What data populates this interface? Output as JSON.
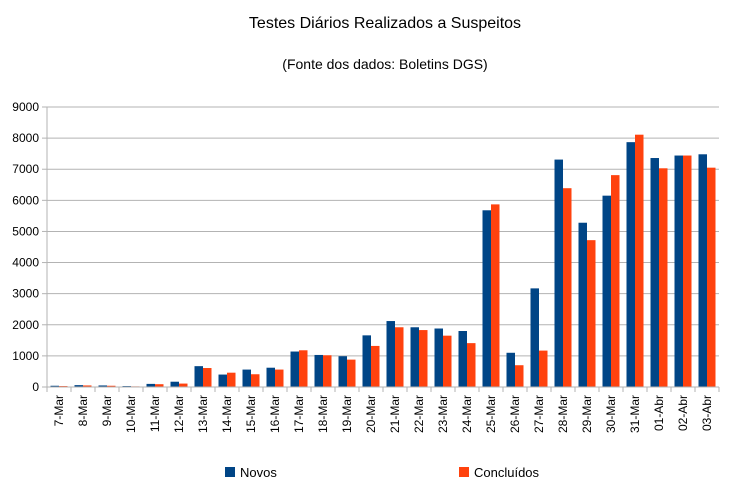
{
  "chart_data": {
    "type": "bar",
    "title": "Testes Diários Realizados a Suspeitos",
    "subtitle": "(Fonte dos dados: Boletins DGS)",
    "xlabel": "",
    "ylabel": "",
    "ylim": [
      0,
      9000
    ],
    "yticks": [
      0,
      1000,
      2000,
      3000,
      4000,
      5000,
      6000,
      7000,
      8000,
      9000
    ],
    "grid": true,
    "legend_position": "bottom",
    "categories": [
      "7-Mar",
      "8-Mar",
      "9-Mar",
      "10-Mar",
      "11-Mar",
      "12-Mar",
      "13-Mar",
      "14-Mar",
      "15-Mar",
      "16-Mar",
      "17-Mar",
      "18-Mar",
      "19-Mar",
      "20-Mar",
      "21-Mar",
      "22-Mar",
      "23-Mar",
      "24-Mar",
      "25-Mar",
      "26-Mar",
      "27-Mar",
      "28-Mar",
      "29-Mar",
      "30-Mar",
      "31-Mar",
      "01-Abr",
      "02-Abr",
      "03-Abr"
    ],
    "series": [
      {
        "name": "Novos",
        "color": "#004586",
        "values": [
          40,
          60,
          50,
          30,
          100,
          170,
          670,
          400,
          560,
          620,
          1140,
          1030,
          990,
          1660,
          2120,
          1920,
          1880,
          1800,
          5680,
          1100,
          3170,
          7310,
          5280,
          6150,
          7870,
          7360,
          7440,
          7480
        ]
      },
      {
        "name": "Concluídos",
        "color": "#ff420e",
        "values": [
          30,
          50,
          40,
          20,
          90,
          110,
          610,
          460,
          410,
          560,
          1180,
          1020,
          880,
          1320,
          1920,
          1830,
          1650,
          1410,
          5870,
          700,
          1170,
          6390,
          4720,
          6810,
          8110,
          7030,
          7440,
          7050
        ]
      }
    ]
  }
}
